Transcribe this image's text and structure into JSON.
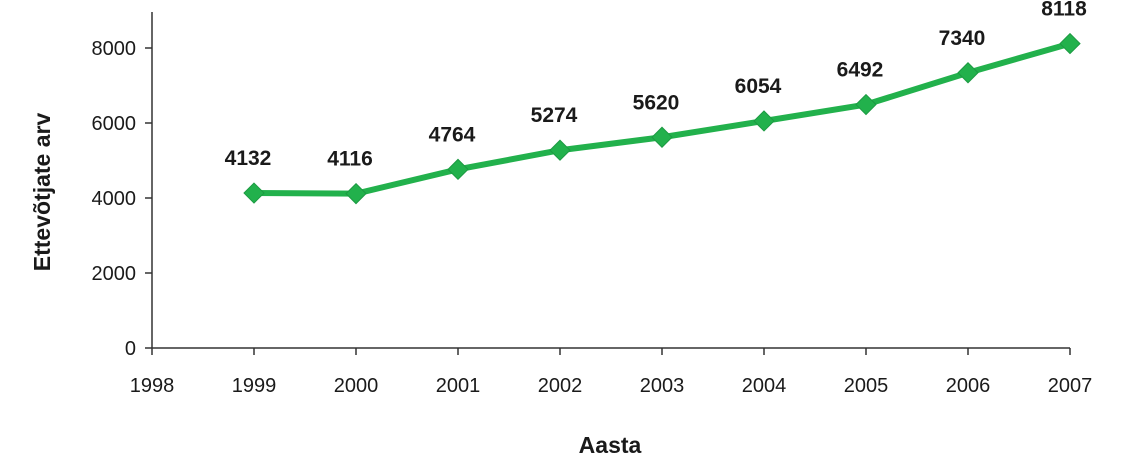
{
  "chart_data": {
    "type": "line",
    "title": "",
    "xlabel": "Aasta",
    "ylabel": "Ettevõtjate arv",
    "x_ticks": [
      "1998",
      "1999",
      "2000",
      "2001",
      "2002",
      "2003",
      "2004",
      "2005",
      "2006",
      "2007"
    ],
    "y_ticks": [
      "0",
      "2000",
      "4000",
      "6000",
      "8000"
    ],
    "xlim": [
      1998,
      2007
    ],
    "ylim": [
      0,
      8000
    ],
    "grid": false,
    "series": [
      {
        "color": "#22b14c",
        "marker": "diamond",
        "points": [
          {
            "x": 1999,
            "y": 4132,
            "label": "4132"
          },
          {
            "x": 2000,
            "y": 4116,
            "label": "4116"
          },
          {
            "x": 2001,
            "y": 4764,
            "label": "4764"
          },
          {
            "x": 2002,
            "y": 5274,
            "label": "5274"
          },
          {
            "x": 2003,
            "y": 5620,
            "label": "5620"
          },
          {
            "x": 2004,
            "y": 6054,
            "label": "6054"
          },
          {
            "x": 2005,
            "y": 6492,
            "label": "6492"
          },
          {
            "x": 2006,
            "y": 7340,
            "label": "7340"
          },
          {
            "x": 2007,
            "y": 8118,
            "label": "8118"
          }
        ]
      }
    ]
  }
}
